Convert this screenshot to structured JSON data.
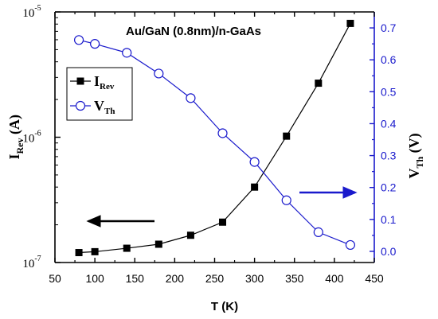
{
  "chart_data": {
    "type": "line",
    "title": "Au/GaN (0.8nm)/n-GaAs",
    "xlabel": "T (K)",
    "xlim": [
      50,
      450
    ],
    "x_ticks": [
      "50",
      "100",
      "150",
      "200",
      "250",
      "300",
      "350",
      "400",
      "450"
    ],
    "y_left": {
      "label_main": "I",
      "label_sub": "Rev",
      "label_unit": " (A)",
      "scale": "log",
      "ylim": [
        1e-07,
        1e-05
      ],
      "ticks": [
        {
          "base": "10",
          "exp": "-7",
          "value": 1e-07
        },
        {
          "base": "10",
          "exp": "-6",
          "value": 1e-06
        },
        {
          "base": "10",
          "exp": "-5",
          "value": 1e-05
        }
      ],
      "color": "#000000"
    },
    "y_right": {
      "label_main": "V",
      "label_sub": "Th",
      "label_unit": " (V)",
      "scale": "linear",
      "ylim": [
        -0.035,
        0.75
      ],
      "ticks": [
        "0.0",
        "0.1",
        "0.2",
        "0.3",
        "0.4",
        "0.5",
        "0.6",
        "0.7"
      ],
      "color": "#1a1acc"
    },
    "series": [
      {
        "name_main": "I",
        "name_sub": "Rev",
        "axis": "left",
        "marker": "filled-square",
        "color": "#000000",
        "x": [
          80,
          100,
          140,
          180,
          220,
          260,
          300,
          340,
          380,
          420
        ],
        "values": [
          1.2e-07,
          1.22e-07,
          1.3e-07,
          1.4e-07,
          1.65e-07,
          2.1e-07,
          4e-07,
          1.02e-06,
          2.7e-06,
          8.1e-06
        ]
      },
      {
        "name_main": "V",
        "name_sub": "Th",
        "axis": "right",
        "marker": "open-circle",
        "color": "#1a1acc",
        "x": [
          80,
          100,
          140,
          180,
          220,
          260,
          300,
          340,
          380,
          420
        ],
        "values": [
          0.662,
          0.65,
          0.622,
          0.557,
          0.48,
          0.37,
          0.28,
          0.16,
          0.06,
          0.02
        ]
      }
    ],
    "legend": "top-left",
    "annotations": [
      {
        "type": "arrow",
        "direction": "left",
        "refers_to": "left axis",
        "color": "#000000"
      },
      {
        "type": "arrow",
        "direction": "right",
        "refers_to": "right axis",
        "color": "#1a1acc"
      }
    ],
    "grid": false
  }
}
